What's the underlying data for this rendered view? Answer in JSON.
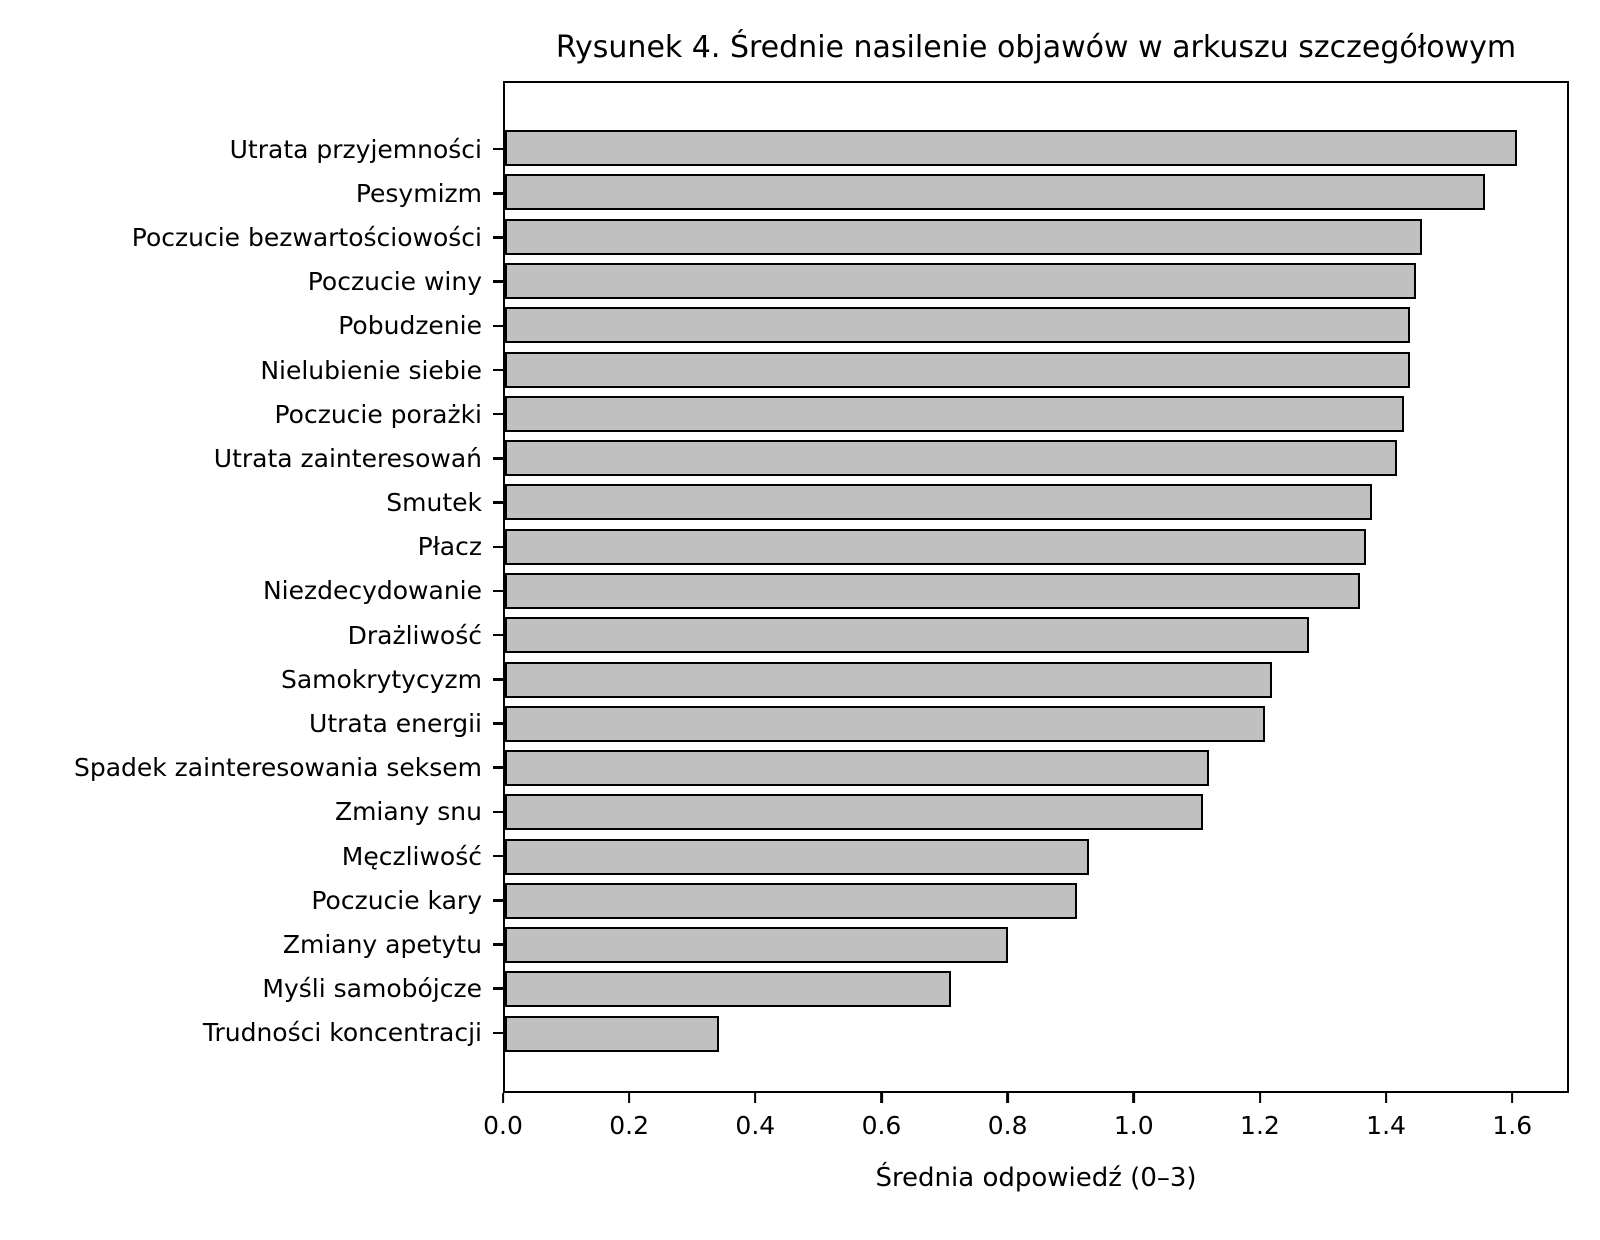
{
  "chart_data": {
    "type": "bar",
    "orientation": "horizontal",
    "title": "Rysunek 4. Średnie nasilenie objawów w arkuszu szczegółowym",
    "xlabel": "Średnia odpowiedź (0–3)",
    "ylabel": "",
    "categories": [
      "Utrata przyjemności",
      "Pesymizm",
      "Poczucie bezwartościowości",
      "Poczucie winy",
      "Pobudzenie",
      "Nielubienie siebie",
      "Poczucie porażki",
      "Utrata zainteresowań",
      "Smutek",
      "Płacz",
      "Niezdecydowanie",
      "Drażliwość",
      "Samokrytycyzm",
      "Utrata energii",
      "Spadek zainteresowania seksem",
      "Zmiany snu",
      "Męczliwość",
      "Poczucie kary",
      "Zmiany apetytu",
      "Myśli samobójcze",
      "Trudności koncentracji"
    ],
    "values": [
      1.61,
      1.56,
      1.46,
      1.45,
      1.44,
      1.44,
      1.43,
      1.42,
      1.38,
      1.37,
      1.36,
      1.28,
      1.22,
      1.21,
      1.12,
      1.11,
      0.93,
      0.91,
      0.8,
      0.71,
      0.34
    ],
    "xlim": [
      0,
      1.69
    ],
    "xticks": [
      0.0,
      0.2,
      0.4,
      0.6,
      0.8,
      1.0,
      1.2,
      1.4,
      1.6
    ],
    "grid": false,
    "legend": null,
    "bar_color": "#c0c0c0",
    "bar_edge_color": "#000000",
    "background_color": "#ffffff",
    "text_color": "#000000"
  }
}
